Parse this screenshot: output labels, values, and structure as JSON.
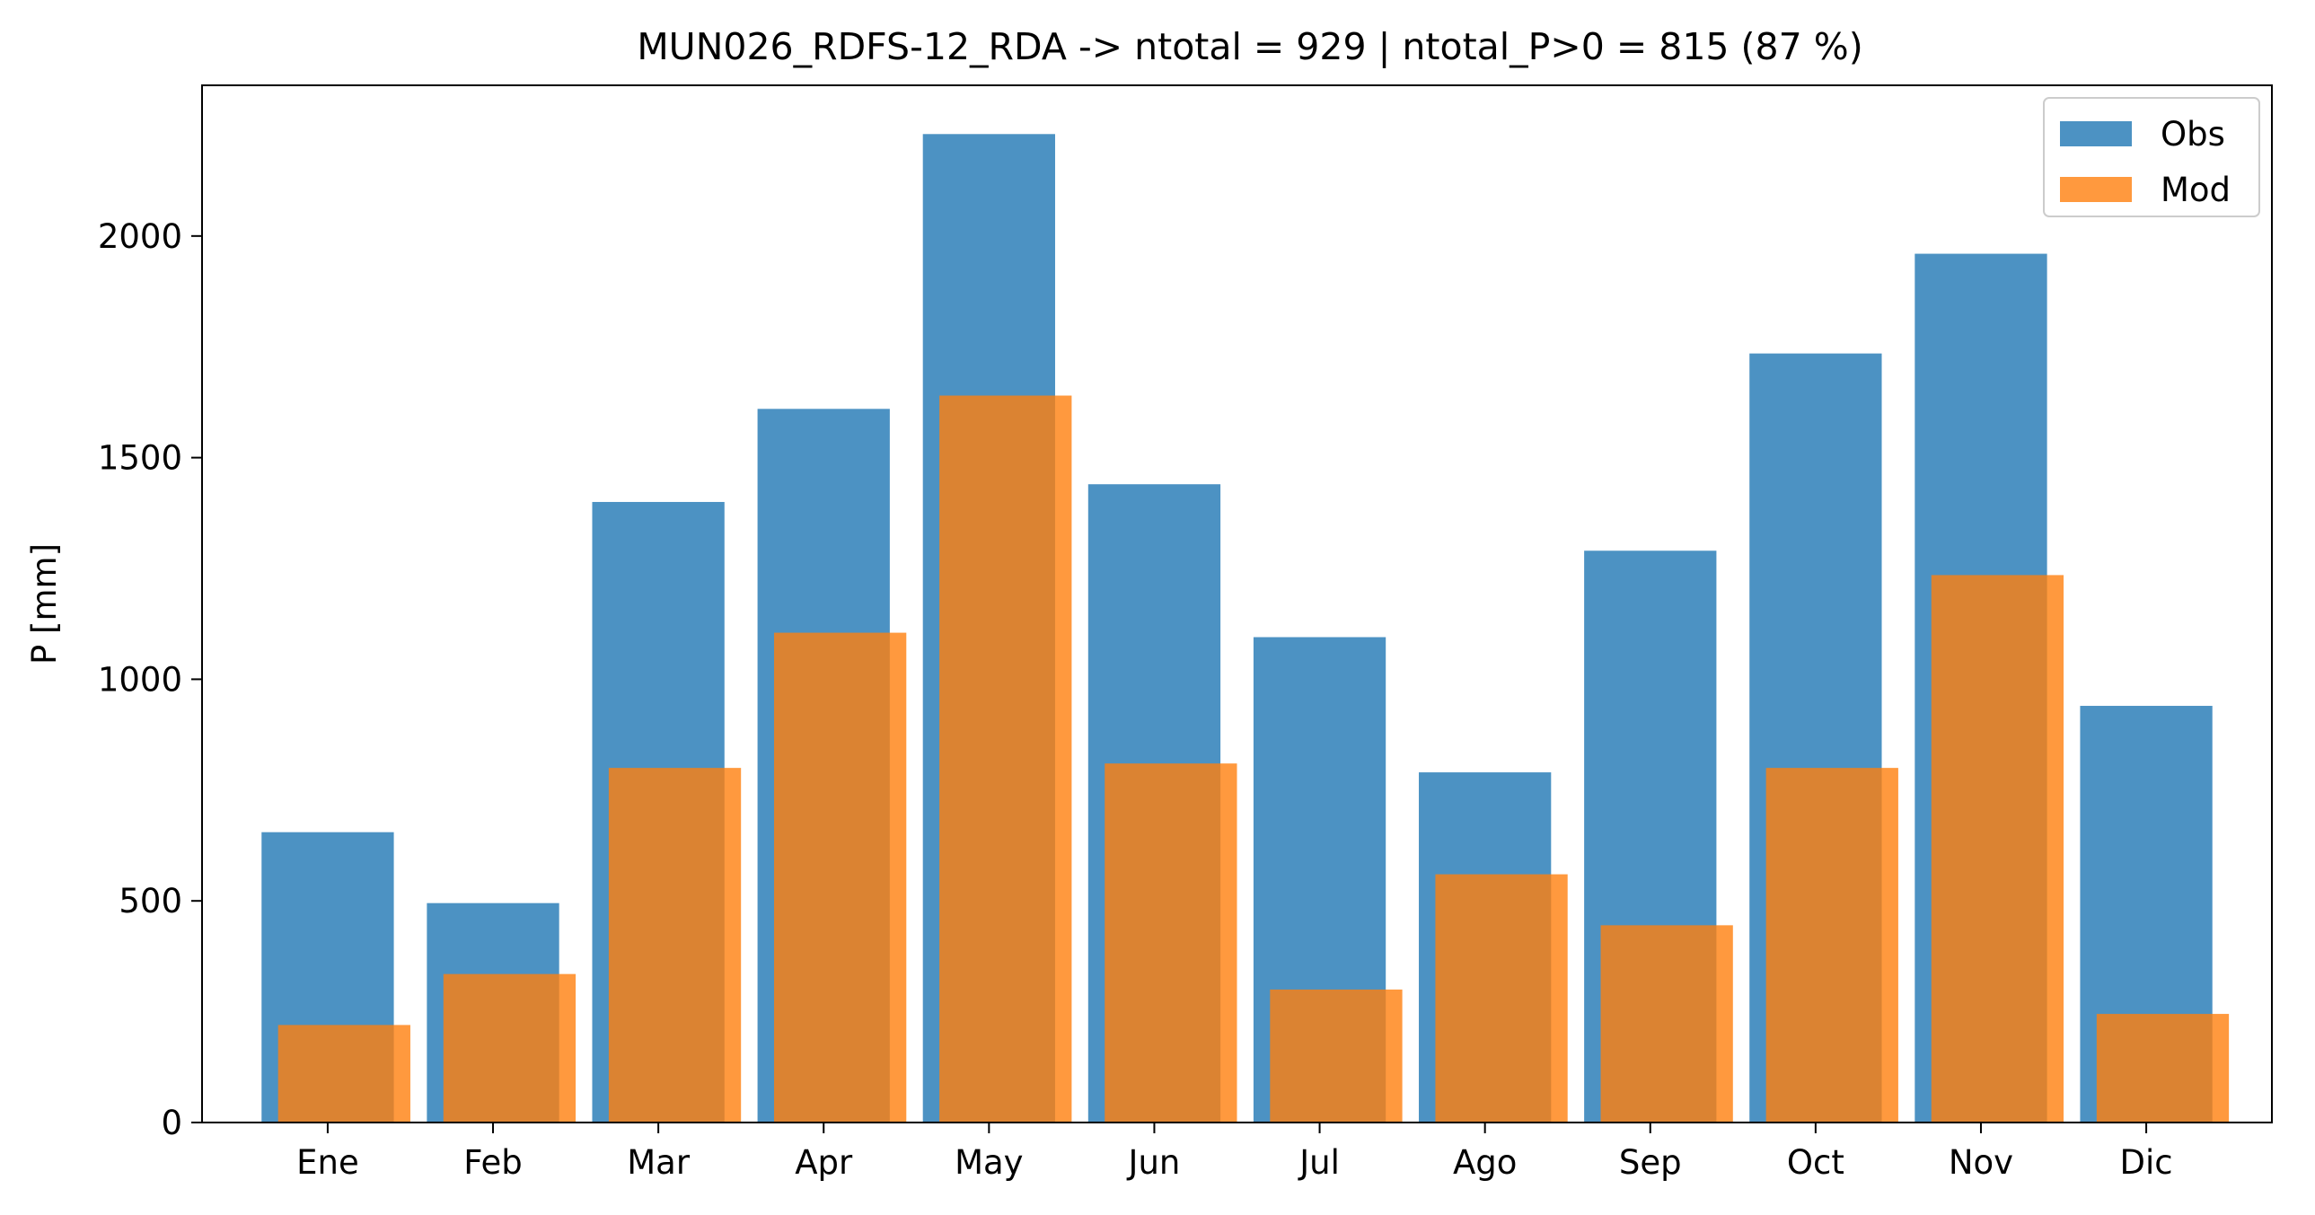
{
  "chart_data": {
    "type": "bar",
    "title": "MUN026_RDFS-12_RDA -> ntotal = 929 | ntotal_P>0 = 815 (87 %)",
    "xlabel": "",
    "ylabel": "P [mm]",
    "categories": [
      "Ene",
      "Feb",
      "Mar",
      "Apr",
      "May",
      "Jun",
      "Jul",
      "Ago",
      "Sep",
      "Oct",
      "Nov",
      "Dic"
    ],
    "series": [
      {
        "name": "Obs",
        "color": "#1f77b4",
        "opacity": 0.8,
        "values": [
          655,
          495,
          1400,
          1610,
          2230,
          1440,
          1095,
          790,
          1290,
          1735,
          1960,
          940
        ]
      },
      {
        "name": "Mod",
        "color": "#ff7f0e",
        "opacity": 0.8,
        "values": [
          220,
          335,
          800,
          1105,
          1640,
          810,
          300,
          560,
          445,
          800,
          1235,
          245
        ]
      }
    ],
    "ylim": [
      0,
      2340
    ],
    "yticks": [
      0,
      500,
      1000,
      1500,
      2000
    ],
    "grid": false,
    "legend_position": "top-right"
  }
}
